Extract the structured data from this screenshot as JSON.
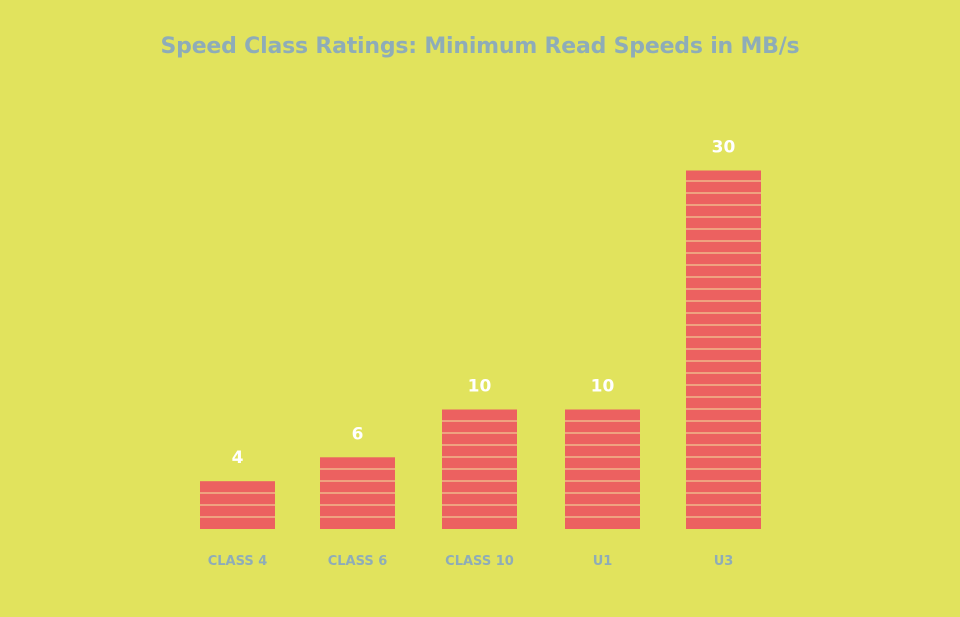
{
  "chart_data": {
    "type": "bar",
    "title": "Speed Class Ratings: Minimum Read Speeds in MB/s",
    "categories": [
      "CLASS 4",
      "CLASS 6",
      "CLASS 10",
      "U1",
      "U3"
    ],
    "values": [
      4,
      6,
      10,
      10,
      30
    ],
    "xlabel": "",
    "ylabel": "",
    "ylim": [
      0,
      30
    ],
    "grid": false,
    "legend": "none",
    "data_labels": true
  },
  "colors": {
    "background": "#E1E35D",
    "bar": "#EC6160",
    "bar_stripe": "#F2E4A0",
    "text_muted": "#8EACB8",
    "data_label": "#FFFFFF"
  }
}
